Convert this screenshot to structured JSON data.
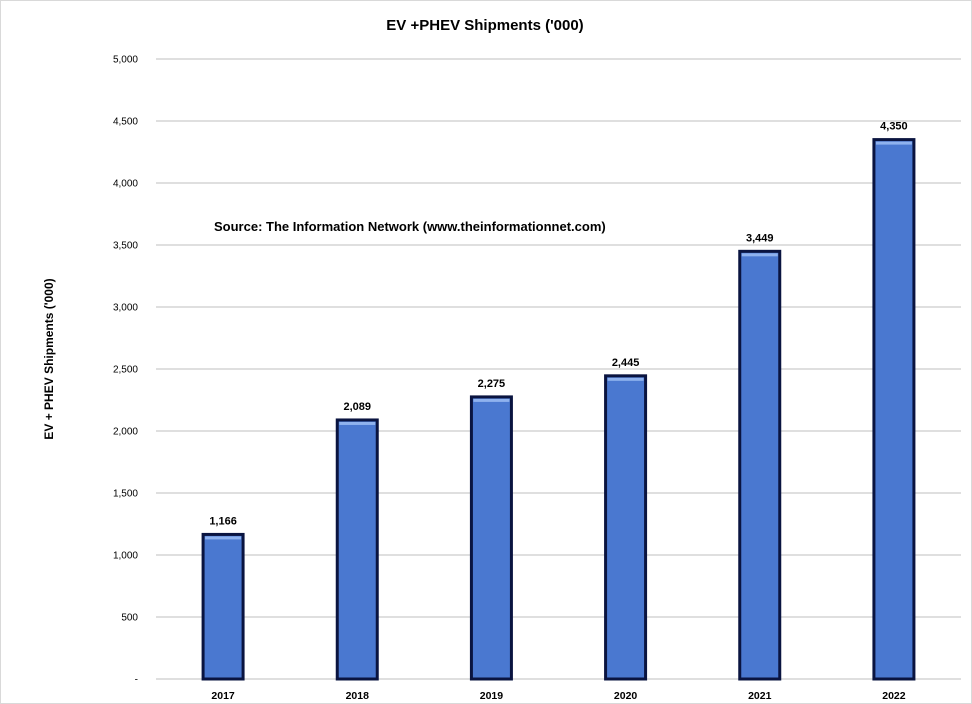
{
  "chart_data": {
    "type": "bar",
    "title": "EV +PHEV Shipments ('000)",
    "ylabel": "EV + PHEV Shipments ('000)",
    "xlabel": "",
    "annotation": "Source: The Information Network (www.theinformationnet.com)",
    "categories": [
      "2017",
      "2018",
      "2019",
      "2020",
      "2021",
      "2022"
    ],
    "values": [
      1166,
      2089,
      2275,
      2445,
      3449,
      4350
    ],
    "data_labels": [
      "1,166",
      "2,089",
      "2,275",
      "2,445",
      "3,449",
      "4,350"
    ],
    "ylim": [
      0,
      5000
    ],
    "yticks": [
      0,
      500,
      1000,
      1500,
      2000,
      2500,
      3000,
      3500,
      4000,
      4500,
      5000
    ],
    "ytick_labels": [
      "-",
      "500",
      "1,000",
      "1,500",
      "2,000",
      "2,500",
      "3,000",
      "3,500",
      "4,000",
      "4,500",
      "5,000"
    ],
    "grid": true,
    "legend": "none",
    "colors": {
      "bar": "#4a78d0",
      "bar_outline": "#0a1440",
      "bar_highlight": "#8fb2ee",
      "grid": "#bfbfbf"
    }
  }
}
